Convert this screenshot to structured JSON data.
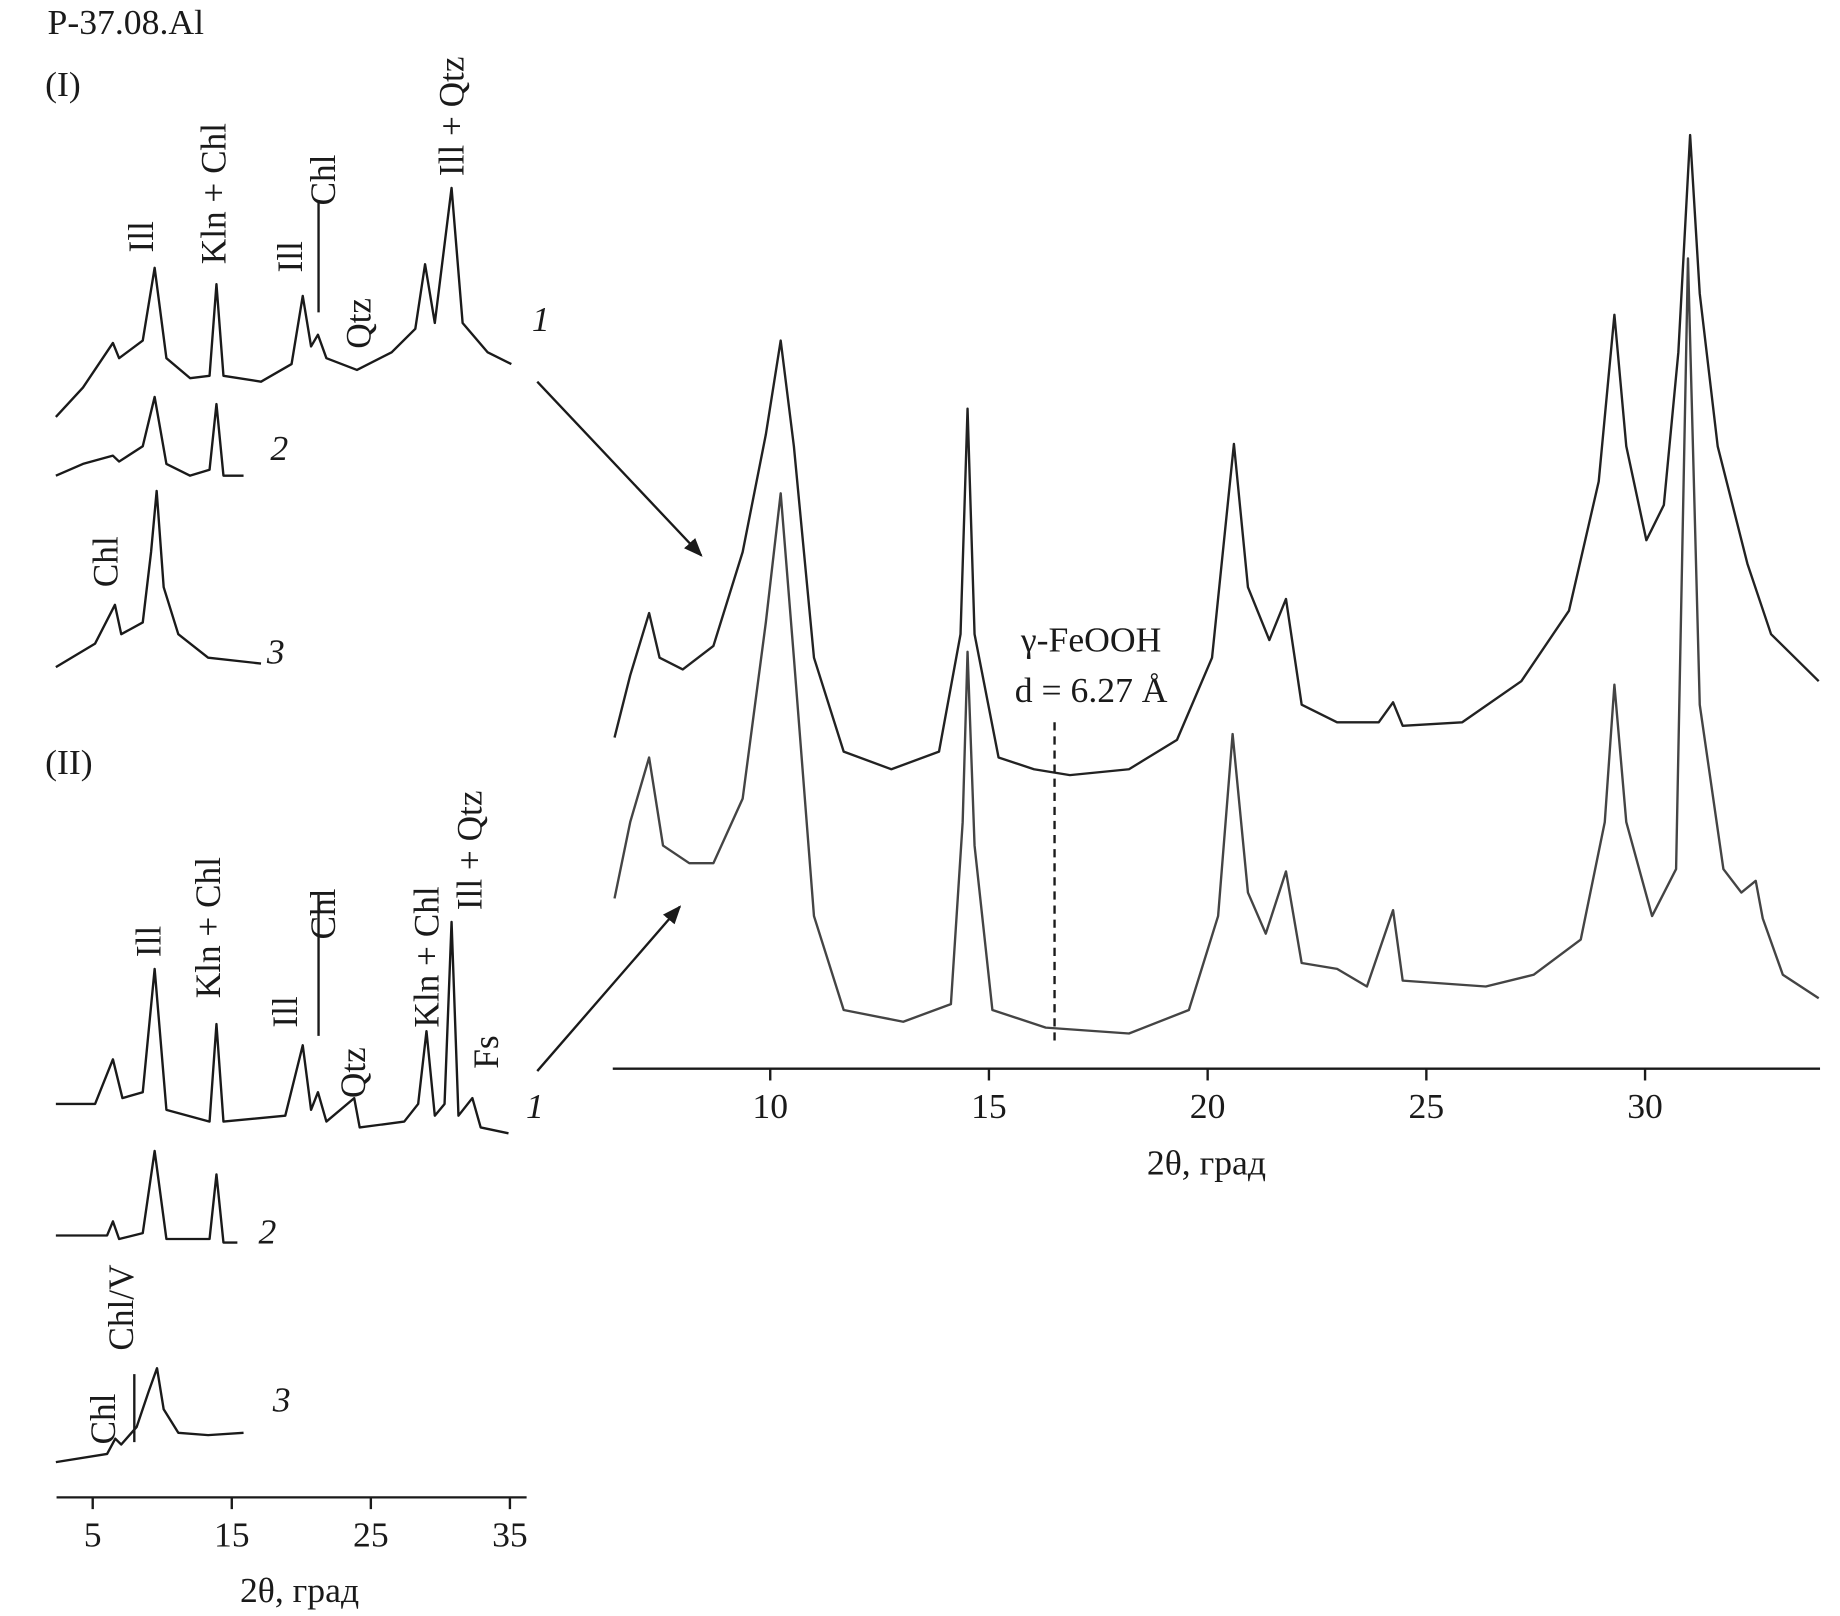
{
  "chart_data": [
    {
      "type": "line",
      "title": "P-37.08.Al",
      "xlabel": "2θ, град",
      "xlim": [
        2.4,
        36.2
      ],
      "xticks": [
        5,
        15,
        25,
        35
      ],
      "panels": [
        {
          "label": "(I)",
          "peak_labels": [
            "Ill",
            "Kln + Chl",
            "Ill",
            "Chl",
            "Qtz",
            "Ill + Qtz",
            "Chl"
          ],
          "series": [
            {
              "name": "1",
              "color": "#1a1a1a",
              "x": [
                2.35,
                4.3,
                6.0,
                6.45,
                6.9,
                8.6,
                9.45,
                10.3,
                12.0,
                13.4,
                13.9,
                14.4,
                17.1,
                19.3,
                20.1,
                20.7,
                21.2,
                21.8,
                24.0,
                26.5,
                28.2,
                28.9,
                29.6,
                30.8,
                31.6,
                33.4,
                35.1
              ],
              "values": [
                5,
                30,
                60,
                68,
                55,
                70,
                132,
                55,
                38,
                40,
                118,
                40,
                35,
                50,
                108,
                65,
                75,
                55,
                45,
                60,
                80,
                135,
                85,
                200,
                85,
                60,
                50
              ]
            },
            {
              "name": "2",
              "color": "#1a1a1a",
              "x": [
                2.35,
                4.3,
                6.45,
                6.9,
                8.6,
                9.45,
                10.3,
                12.0,
                13.4,
                13.9,
                14.4,
                15.85
              ],
              "values": [
                15,
                25,
                32,
                27,
                40,
                82,
                25,
                15,
                20,
                76,
                15,
                15
              ]
            },
            {
              "name": "3",
              "color": "#1a1a1a",
              "x": [
                2.35,
                5.17,
                6.6,
                7.05,
                8.6,
                9.2,
                9.6,
                10.1,
                11.15,
                13.3,
                17.1
              ],
              "values": [
                7,
                27,
                60,
                35,
                45,
                105,
                157,
                75,
                35,
                15,
                10
              ]
            }
          ]
        },
        {
          "label": "(II)",
          "peak_labels": [
            "Ill",
            "Kln + Chl",
            "Ill",
            "Chl",
            "Qtz",
            "Kln + Chl",
            "Ill + Qtz",
            "Fs",
            "Chl/V",
            "Chl"
          ],
          "series": [
            {
              "name": "1",
              "color": "#1a1a1a",
              "x": [
                2.35,
                5.17,
                6.45,
                7.14,
                8.6,
                9.45,
                10.3,
                13.4,
                13.9,
                14.4,
                18.85,
                20.1,
                20.7,
                21.2,
                21.8,
                23.8,
                24.2,
                27.4,
                28.4,
                29.0,
                29.6,
                30.3,
                30.8,
                31.3,
                32.3,
                32.9,
                34.9
              ],
              "values": [
                40,
                40,
                78,
                45,
                50,
                155,
                35,
                25,
                108,
                25,
                30,
                90,
                35,
                50,
                25,
                45,
                20,
                25,
                40,
                102,
                30,
                40,
                195,
                30,
                45,
                20,
                15
              ]
            },
            {
              "name": "2",
              "color": "#1a1a1a",
              "x": [
                2.35,
                6.03,
                6.45,
                6.9,
                8.6,
                9.45,
                10.3,
                13.4,
                13.9,
                14.4,
                15.4
              ],
              "values": [
                13,
                13,
                25,
                10,
                15,
                85,
                10,
                10,
                65,
                7,
                7
              ]
            },
            {
              "name": "3",
              "color": "#1a1a1a",
              "x": [
                2.35,
                6.03,
                6.62,
                7.05,
                8.16,
                9.02,
                9.62,
                10.1,
                11.15,
                13.3,
                15.85
              ],
              "values": [
                5,
                12,
                25,
                20,
                35,
                65,
                85,
                50,
                30,
                28,
                30
              ]
            }
          ]
        }
      ]
    },
    {
      "type": "line",
      "xlabel": "2θ, град",
      "xlim": [
        6.4,
        34.0
      ],
      "xticks": [
        10,
        15,
        20,
        25,
        30
      ],
      "annotation": [
        "γ-FeOOH",
        "d = 6.27 Å"
      ],
      "marker_x": 16.5,
      "series": [
        {
          "color": "#222222",
          "x": [
            6.44,
            6.8,
            7.23,
            7.47,
            8.0,
            8.7,
            9.37,
            9.9,
            10.24,
            10.54,
            11.0,
            11.68,
            12.77,
            13.86,
            14.35,
            14.51,
            14.67,
            15.22,
            16.03,
            16.85,
            18.2,
            19.3,
            20.1,
            20.6,
            20.92,
            21.41,
            21.79,
            22.15,
            22.96,
            23.91,
            24.24,
            24.46,
            25.82,
            27.17,
            28.26,
            28.94,
            29.3,
            29.57,
            30.03,
            30.43,
            30.76,
            31.03,
            31.25,
            31.66,
            32.34,
            32.88,
            33.97
          ],
          "values": [
            72,
            125,
            178,
            140,
            130,
            150,
            230,
            330,
            410,
            320,
            140,
            60,
            45,
            60,
            160,
            352,
            160,
            55,
            45,
            40,
            45,
            70,
            140,
            322,
            200,
            155,
            190,
            100,
            85,
            85,
            102,
            82,
            85,
            120,
            180,
            290,
            432,
            320,
            240,
            270,
            400,
            585,
            450,
            320,
            220,
            160,
            120
          ]
        },
        {
          "color": "#444444",
          "x": [
            6.44,
            6.8,
            7.23,
            7.55,
            8.15,
            8.7,
            9.37,
            9.9,
            10.24,
            10.54,
            11.0,
            11.68,
            13.04,
            14.13,
            14.4,
            14.51,
            14.67,
            15.08,
            16.3,
            18.2,
            19.57,
            20.24,
            20.57,
            20.92,
            21.33,
            21.79,
            22.15,
            22.96,
            23.64,
            24.24,
            24.46,
            26.36,
            27.45,
            28.53,
            29.08,
            29.3,
            29.57,
            30.16,
            30.71,
            30.98,
            31.25,
            31.79,
            32.2,
            32.53,
            32.69,
            33.15,
            33.97
          ],
          "values": [
            135,
            200,
            255,
            180,
            165,
            165,
            220,
            370,
            480,
            340,
            120,
            40,
            30,
            45,
            200,
            345,
            180,
            40,
            25,
            20,
            40,
            120,
            275,
            140,
            105,
            158,
            80,
            75,
            60,
            125,
            65,
            60,
            70,
            100,
            200,
            317,
            200,
            120,
            160,
            680,
            300,
            160,
            140,
            150,
            118,
            70,
            50
          ]
        }
      ]
    }
  ]
}
